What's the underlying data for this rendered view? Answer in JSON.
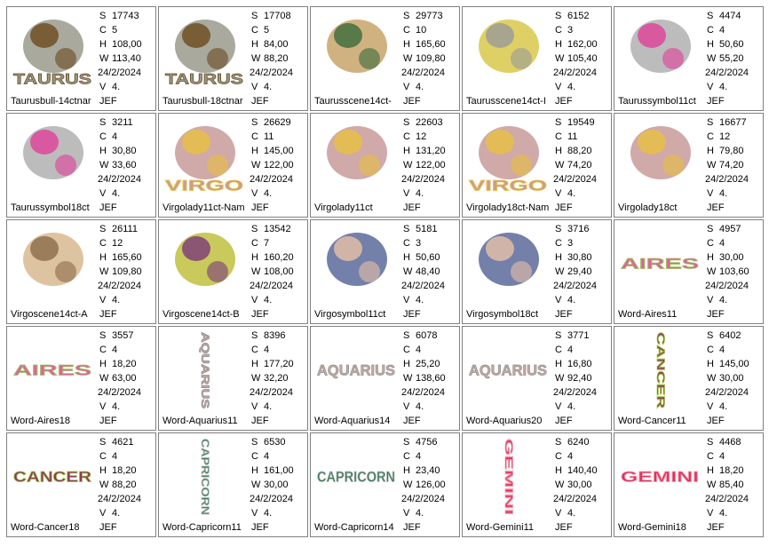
{
  "labels": [
    "S",
    "C",
    "H",
    "W",
    "V"
  ],
  "cells": [
    {
      "name": "Taurusbull-14ctnar",
      "S": "17743",
      "C": "5",
      "H": "108,00",
      "W": "113,40",
      "date": "24/2/2024",
      "V": "4.",
      "format": "JEF",
      "colors": [
        "#9a9a8c",
        "#6b4a1e"
      ],
      "art_text": "TAURUS"
    },
    {
      "name": "Taurusbull-18ctnar",
      "S": "17708",
      "C": "5",
      "H": "84,00",
      "W": "88,20",
      "date": "24/2/2024",
      "V": "4.",
      "format": "JEF",
      "colors": [
        "#9a9a8c",
        "#6b4a1e"
      ],
      "art_text": "TAURUS"
    },
    {
      "name": "Taurusscene14ct-",
      "S": "29773",
      "C": "10",
      "H": "165,60",
      "W": "109,80",
      "date": "24/2/2024",
      "V": "4.",
      "format": "JEF",
      "colors": [
        "#c8a46a",
        "#3a6a3a"
      ]
    },
    {
      "name": "Taurusscene14ct-I",
      "S": "6152",
      "C": "3",
      "H": "162,00",
      "W": "105,40",
      "date": "24/2/2024",
      "V": "4.",
      "format": "JEF",
      "colors": [
        "#d8c84a",
        "#9a9a9a"
      ]
    },
    {
      "name": "Taurussymbol11ct",
      "S": "4474",
      "C": "4",
      "H": "50,60",
      "W": "55,20",
      "date": "24/2/2024",
      "V": "4.",
      "format": "JEF",
      "colors": [
        "#b0b0b0",
        "#e0409a"
      ]
    },
    {
      "name": "Taurussymbol18ct",
      "S": "3211",
      "C": "4",
      "H": "30,80",
      "W": "33,60",
      "date": "24/2/2024",
      "V": "4.",
      "format": "JEF",
      "colors": [
        "#b0b0b0",
        "#e0409a"
      ]
    },
    {
      "name": "Virgolady11ct-Nam",
      "S": "26629",
      "C": "11",
      "H": "145,00",
      "W": "122,00",
      "date": "24/2/2024",
      "V": "4.",
      "format": "JEF",
      "colors": [
        "#c89a9a",
        "#e8c040"
      ],
      "art_text": "VIRGO"
    },
    {
      "name": "Virgolady11ct",
      "S": "22603",
      "C": "12",
      "H": "131,20",
      "W": "122,00",
      "date": "24/2/2024",
      "V": "4.",
      "format": "JEF",
      "colors": [
        "#c89a9a",
        "#e8c040"
      ]
    },
    {
      "name": "Virgolady18ct-Nam",
      "S": "19549",
      "C": "11",
      "H": "88,20",
      "W": "74,20",
      "date": "24/2/2024",
      "V": "4.",
      "format": "JEF",
      "colors": [
        "#c89a9a",
        "#e8c040"
      ],
      "art_text": "VIRGO"
    },
    {
      "name": "Virgolady18ct",
      "S": "16677",
      "C": "12",
      "H": "79,80",
      "W": "74,20",
      "date": "24/2/2024",
      "V": "4.",
      "format": "JEF",
      "colors": [
        "#c89a9a",
        "#e8c040"
      ]
    },
    {
      "name": "Virgoscene14ct-A",
      "S": "26111",
      "C": "12",
      "H": "165,60",
      "W": "109,80",
      "date": "24/2/2024",
      "V": "4.",
      "format": "JEF",
      "colors": [
        "#d8b890",
        "#8a6a4a"
      ]
    },
    {
      "name": "Virgoscene14ct-B",
      "S": "13542",
      "C": "7",
      "H": "160,20",
      "W": "108,00",
      "date": "24/2/2024",
      "V": "4.",
      "format": "JEF",
      "colors": [
        "#c0c040",
        "#7a3a7a"
      ]
    },
    {
      "name": "Virgosymbol11ct",
      "S": "5181",
      "C": "3",
      "H": "50,60",
      "W": "48,40",
      "date": "24/2/2024",
      "V": "4.",
      "format": "JEF",
      "colors": [
        "#5a6a9a",
        "#e8c0a8"
      ]
    },
    {
      "name": "Virgosymbol18ct",
      "S": "3716",
      "C": "3",
      "H": "30,80",
      "W": "29,40",
      "date": "24/2/2024",
      "V": "4.",
      "format": "JEF",
      "colors": [
        "#5a6a9a",
        "#e8c0a8"
      ]
    },
    {
      "name": "Word-Aires11",
      "S": "4957",
      "C": "4",
      "H": "30,00",
      "W": "103,60",
      "date": "24/2/2024",
      "V": "4.",
      "format": "JEF",
      "colors": [
        "#e060a0",
        "#a0c060"
      ],
      "art_text": "AIRES"
    },
    {
      "name": "Word-Aires18",
      "S": "3557",
      "C": "4",
      "H": "18,20",
      "W": "63,00",
      "date": "24/2/2024",
      "V": "4.",
      "format": "JEF",
      "colors": [
        "#e060a0",
        "#a0c060"
      ],
      "art_text": "AIRES"
    },
    {
      "name": "Word-Aquarius11",
      "S": "8396",
      "C": "4",
      "H": "177,20",
      "W": "32,20",
      "date": "24/2/2024",
      "V": "4.",
      "format": "JEF",
      "colors": [
        "#c8a8a0",
        "#909090"
      ],
      "art_text": "AQUARIUS",
      "art_vertical": true
    },
    {
      "name": "Word-Aquarius14",
      "S": "6078",
      "C": "4",
      "H": "25,20",
      "W": "138,60",
      "date": "24/2/2024",
      "V": "4.",
      "format": "JEF",
      "colors": [
        "#c8a8a0",
        "#909090"
      ],
      "art_text": "AQUARIUS"
    },
    {
      "name": "Word-Aquarius20",
      "S": "3771",
      "C": "4",
      "H": "16,80",
      "W": "92,40",
      "date": "24/2/2024",
      "V": "4.",
      "format": "JEF",
      "colors": [
        "#c8a8a0",
        "#909090"
      ],
      "art_text": "AQUARIUS"
    },
    {
      "name": "Word-Cancer11",
      "S": "6402",
      "C": "4",
      "H": "145,00",
      "W": "30,00",
      "date": "24/2/2024",
      "V": "4.",
      "format": "JEF",
      "colors": [
        "#8a3a5a",
        "#a0c040"
      ],
      "art_text": "CANCER",
      "art_vertical": true
    },
    {
      "name": "Word-Cancer18",
      "S": "4621",
      "C": "4",
      "H": "18,20",
      "W": "88,20",
      "date": "24/2/2024",
      "V": "4.",
      "format": "JEF",
      "colors": [
        "#8a3a5a",
        "#a0c040"
      ],
      "art_text": "CANCER"
    },
    {
      "name": "Word-Capricorn11",
      "S": "6530",
      "C": "4",
      "H": "161,00",
      "W": "30,00",
      "date": "24/2/2024",
      "V": "4.",
      "format": "JEF",
      "colors": [
        "#3a7a5a",
        "#c0c0c0"
      ],
      "art_text": "CAPRICORN",
      "art_vertical": true
    },
    {
      "name": "Word-Capricorn14",
      "S": "4756",
      "C": "4",
      "H": "23,40",
      "W": "126,00",
      "date": "24/2/2024",
      "V": "4.",
      "format": "JEF",
      "colors": [
        "#3a7a5a",
        "#c0c0c0"
      ],
      "art_text": "CAPRICORN"
    },
    {
      "name": "Word-Gemini11",
      "S": "6240",
      "C": "4",
      "H": "140,40",
      "W": "30,00",
      "date": "24/2/2024",
      "V": "4.",
      "format": "JEF",
      "colors": [
        "#e03060",
        "#f0a0b0"
      ],
      "art_text": "GEMINI",
      "art_vertical": true
    },
    {
      "name": "Word-Gemini18",
      "S": "4468",
      "C": "4",
      "H": "18,20",
      "W": "85,40",
      "date": "24/2/2024",
      "V": "4.",
      "format": "JEF",
      "colors": [
        "#e03060",
        "#f0a0b0"
      ],
      "art_text": "GEMINI"
    }
  ]
}
